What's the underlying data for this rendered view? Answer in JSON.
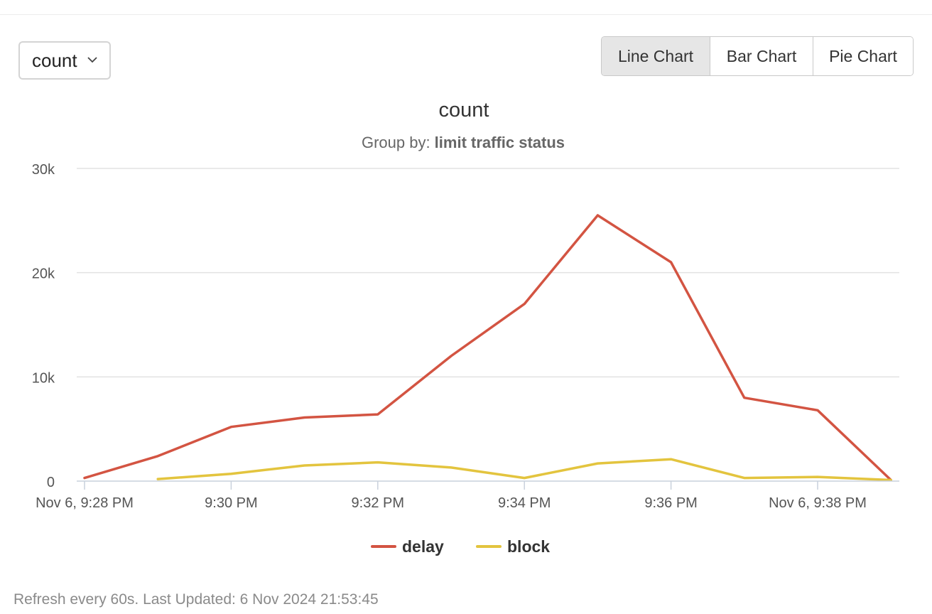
{
  "metric_select": {
    "value": "count",
    "icon": "chevron-down-icon"
  },
  "chart_switch": {
    "buttons": [
      "Line Chart",
      "Bar Chart",
      "Pie Chart"
    ],
    "active": "Line Chart"
  },
  "refresh_text": "Refresh every 60s. Last Updated: 6 Nov 2024 21:53:45",
  "chart_data": {
    "type": "line",
    "title": "count",
    "subtitle_prefix": "Group by: ",
    "subtitle_value": "limit traffic status",
    "x_tick_labels": [
      "Nov 6, 9:28 PM",
      "9:30 PM",
      "9:32 PM",
      "9:34 PM",
      "9:36 PM",
      "Nov 6, 9:38 PM"
    ],
    "y_tick_labels": [
      "0",
      "10k",
      "20k",
      "30k"
    ],
    "ylim": [
      0,
      30000
    ],
    "grid": true,
    "legend_position": "bottom",
    "series": [
      {
        "name": "delay",
        "color": "#d35442",
        "x": [
          "9:28 PM",
          "9:29 PM",
          "9:30 PM",
          "9:31 PM",
          "9:32 PM",
          "9:33 PM",
          "9:34 PM",
          "9:35 PM",
          "9:36 PM",
          "9:37 PM",
          "9:38 PM",
          "9:39 PM"
        ],
        "values": [
          300,
          2400,
          5200,
          6100,
          6400,
          12000,
          17000,
          25500,
          21000,
          8000,
          6800,
          100
        ]
      },
      {
        "name": "block",
        "color": "#e3c43e",
        "x": [
          "9:29 PM",
          "9:30 PM",
          "9:31 PM",
          "9:32 PM",
          "9:33 PM",
          "9:34 PM",
          "9:35 PM",
          "9:36 PM",
          "9:37 PM",
          "9:38 PM",
          "9:39 PM"
        ],
        "values": [
          200,
          700,
          1500,
          1800,
          1300,
          300,
          1700,
          2100,
          300,
          400,
          100
        ]
      }
    ]
  }
}
